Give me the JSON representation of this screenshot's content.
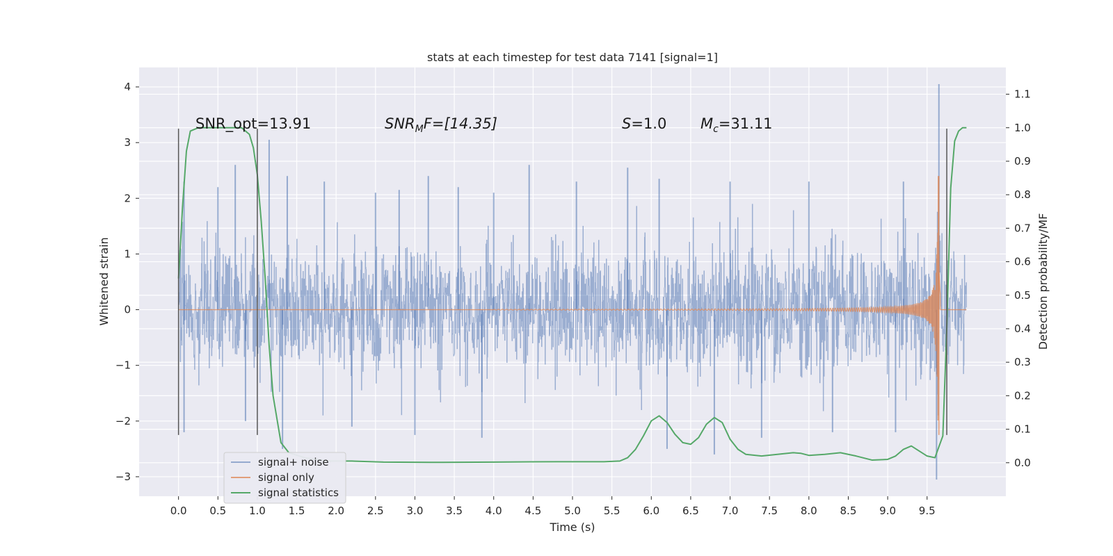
{
  "chart_data": {
    "type": "line",
    "title": "stats at each timestep for test data 7141 [signal=1]",
    "xlabel": "Time (s)",
    "ylabel": "Whitened strain",
    "ylabel_right": "Detection probability/MF",
    "xlim": [
      -0.5,
      10.5
    ],
    "ylim": [
      -3.35,
      4.35
    ],
    "ylim_right": [
      -0.1,
      1.18
    ],
    "x_ticks": [
      "0.0",
      "0.5",
      "1.0",
      "1.5",
      "2.0",
      "2.5",
      "3.0",
      "3.5",
      "4.0",
      "4.5",
      "5.0",
      "5.5",
      "6.0",
      "6.5",
      "7.0",
      "7.5",
      "8.0",
      "8.5",
      "9.0",
      "9.5"
    ],
    "y_ticks": [
      "4",
      "3",
      "2",
      "1",
      "0",
      "−1",
      "−2",
      "−3"
    ],
    "y_tick_values": [
      4,
      3,
      2,
      1,
      0,
      -1,
      -2,
      -3
    ],
    "y_right_ticks": [
      "1.1",
      "1.0",
      "0.9",
      "0.8",
      "0.7",
      "0.6",
      "0.5",
      "0.4",
      "0.3",
      "0.2",
      "0.1",
      "0.0"
    ],
    "y_right_tick_values": [
      1.1,
      1.0,
      0.9,
      0.8,
      0.7,
      0.6,
      0.5,
      0.4,
      0.3,
      0.2,
      0.1,
      0.0
    ],
    "grid": true,
    "legend_position": "lower-left",
    "annotations": {
      "snr_opt": "SNR_opt=13.91",
      "snr_mf_main": "SNR",
      "snr_mf_sub": "M",
      "snr_mf_rest": "F=[14.35]",
      "s_main": "S",
      "s_rest": "=1.0",
      "mc_main": "M",
      "mc_sub": "c",
      "mc_rest": "=31.11"
    },
    "annotation_anchor_x": [
      0.2,
      2.6,
      5.6,
      6.6
    ],
    "series": [
      {
        "name": "signal+ noise",
        "color": "#4c72b0",
        "x_range": [
          0.0,
          10.0
        ],
        "envelope_typical": [
          -1.4,
          1.5
        ],
        "spikes": [
          [
            0.07,
            2.3
          ],
          [
            0.5,
            2.2
          ],
          [
            0.72,
            2.6
          ],
          [
            1.15,
            3.05
          ],
          [
            1.38,
            2.4
          ],
          [
            1.85,
            2.3
          ],
          [
            2.5,
            2.1
          ],
          [
            2.8,
            2.15
          ],
          [
            3.17,
            2.4
          ],
          [
            3.55,
            2.2
          ],
          [
            4.0,
            2.1
          ],
          [
            4.45,
            2.6
          ],
          [
            5.05,
            2.3
          ],
          [
            5.7,
            2.55
          ],
          [
            6.1,
            2.35
          ],
          [
            7.0,
            2.3
          ],
          [
            8.0,
            2.3
          ],
          [
            9.2,
            2.3
          ],
          [
            9.65,
            4.05
          ],
          [
            0.07,
            -2.2
          ],
          [
            0.85,
            -2.0
          ],
          [
            1.32,
            -2.5
          ],
          [
            2.2,
            -2.1
          ],
          [
            3.0,
            -2.25
          ],
          [
            3.85,
            -2.3
          ],
          [
            6.2,
            -2.5
          ],
          [
            6.8,
            -2.6
          ],
          [
            7.4,
            -2.3
          ],
          [
            8.3,
            -2.2
          ],
          [
            9.1,
            -2.2
          ],
          [
            9.62,
            -3.05
          ]
        ]
      },
      {
        "name": "signal only",
        "color": "#dd8452",
        "chirp_start": 5.5,
        "merger_time": 9.65,
        "peak_amplitude": 2.4,
        "min_amplitude": -2.25
      },
      {
        "name": "signal statistics",
        "color": "#55a868",
        "axis": "right",
        "x": [
          0.0,
          0.05,
          0.1,
          0.15,
          0.25,
          0.4,
          0.6,
          0.8,
          0.9,
          0.95,
          1.0,
          1.05,
          1.1,
          1.15,
          1.2,
          1.3,
          1.4,
          1.6,
          1.9,
          2.2,
          2.6,
          3.2,
          4.0,
          4.8,
          5.4,
          5.6,
          5.7,
          5.8,
          5.9,
          6.0,
          6.1,
          6.2,
          6.3,
          6.4,
          6.5,
          6.6,
          6.7,
          6.8,
          6.9,
          7.0,
          7.1,
          7.2,
          7.4,
          7.6,
          7.8,
          7.9,
          8.0,
          8.2,
          8.4,
          8.6,
          8.8,
          9.0,
          9.1,
          9.2,
          9.3,
          9.4,
          9.5,
          9.6,
          9.7,
          9.75,
          9.8,
          9.85,
          9.9,
          9.95,
          10.0
        ],
        "y": [
          0.55,
          0.76,
          0.93,
          0.99,
          1.0,
          1.0,
          1.0,
          1.0,
          0.98,
          0.94,
          0.86,
          0.72,
          0.55,
          0.35,
          0.2,
          0.06,
          0.03,
          0.015,
          0.005,
          0.005,
          0.002,
          0.001,
          0.002,
          0.003,
          0.003,
          0.005,
          0.015,
          0.04,
          0.08,
          0.125,
          0.14,
          0.12,
          0.085,
          0.06,
          0.055,
          0.075,
          0.115,
          0.135,
          0.12,
          0.07,
          0.04,
          0.025,
          0.02,
          0.025,
          0.03,
          0.028,
          0.022,
          0.025,
          0.03,
          0.02,
          0.008,
          0.01,
          0.02,
          0.04,
          0.05,
          0.035,
          0.02,
          0.015,
          0.08,
          0.4,
          0.82,
          0.96,
          0.99,
          1.0,
          1.0
        ]
      }
    ],
    "vertical_lines": [
      {
        "x": 0.0,
        "y_from": -2.25,
        "y_to": 3.25
      },
      {
        "x": 1.0,
        "y_from": -2.25,
        "y_to": 3.25
      },
      {
        "x": 9.75,
        "y_from": -2.25,
        "y_to": 3.25
      }
    ]
  }
}
